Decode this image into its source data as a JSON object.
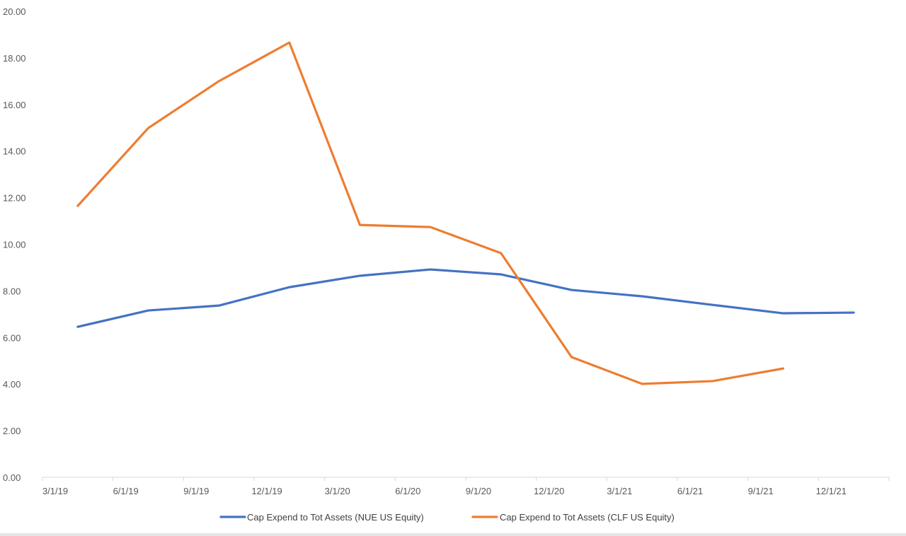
{
  "chart_data": {
    "type": "line",
    "title": "",
    "xlabel": "",
    "ylabel": "",
    "categories": [
      "3/1/19",
      "6/1/19",
      "9/1/19",
      "12/1/19",
      "3/1/20",
      "6/1/20",
      "9/1/20",
      "12/1/20",
      "3/1/21",
      "6/1/21",
      "9/1/21",
      "12/1/21"
    ],
    "ylim": [
      0,
      20
    ],
    "yticks": [
      "0.00",
      "2.00",
      "4.00",
      "6.00",
      "8.00",
      "10.00",
      "12.00",
      "14.00",
      "16.00",
      "18.00",
      "20.00"
    ],
    "grid": false,
    "legend_position": "bottom",
    "series": [
      {
        "name": "Cap Expend to Tot Assets (NUE US Equity)",
        "color": "#4472c4",
        "values": [
          6.46,
          7.16,
          7.37,
          8.16,
          8.65,
          8.92,
          8.71,
          8.04,
          7.77,
          7.4,
          7.04,
          7.07
        ]
      },
      {
        "name": "Cap Expend to Tot Assets (CLF US Equity)",
        "color": "#ed7d31",
        "values": [
          11.65,
          14.99,
          17.0,
          18.66,
          10.83,
          10.74,
          9.62,
          5.16,
          4.01,
          4.13,
          4.67,
          null
        ]
      }
    ]
  }
}
